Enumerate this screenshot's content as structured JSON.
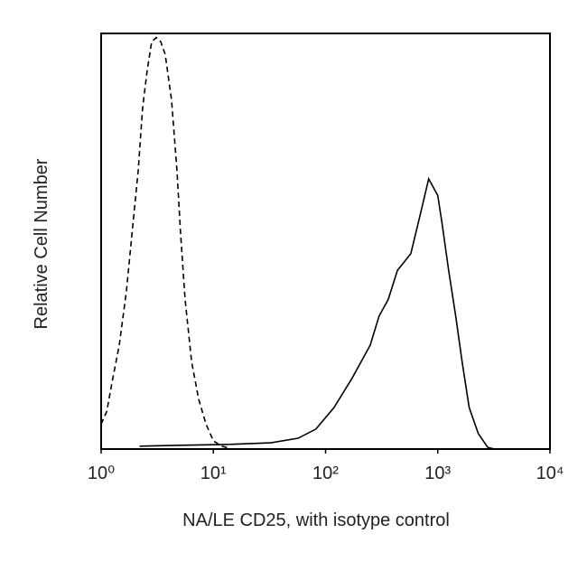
{
  "chart_data": {
    "type": "line",
    "xlabel": "NA/LE CD25, with isotype control",
    "ylabel": "Relative Cell Number",
    "xscale": "log",
    "xlim": [
      1,
      10000
    ],
    "xticks": [
      {
        "value": 1,
        "label": "10⁰"
      },
      {
        "value": 10,
        "label": "10¹"
      },
      {
        "value": 100,
        "label": "10²"
      },
      {
        "value": 1000,
        "label": "10³"
      },
      {
        "value": 10000,
        "label": "10⁴"
      }
    ],
    "ylim": [
      0,
      100
    ],
    "series": [
      {
        "color": "#000000",
        "dash": true,
        "x": [
          1,
          1.12,
          1.27,
          1.45,
          1.68,
          1.95,
          2.14,
          2.34,
          2.57,
          2.82,
          3.1,
          3.4,
          3.72,
          4.24,
          4.74,
          5.1,
          5.6,
          6.4,
          7.4,
          8.6,
          10,
          11.8,
          14
        ],
        "values": [
          6,
          9,
          17,
          25,
          38,
          56,
          67,
          82,
          91,
          98,
          99,
          98,
          95,
          84,
          67,
          52,
          36,
          21,
          12,
          6,
          2,
          0.7,
          0.2
        ]
      },
      {
        "color": "#000000",
        "dash": false,
        "x": [
          2.2,
          5.1,
          12.9,
          32.6,
          56.9,
          82,
          119,
          172,
          250,
          300,
          362,
          437,
          575,
          692,
          830,
          912,
          1000,
          1096,
          1250,
          1445,
          1648,
          1905,
          2300,
          2790,
          3200
        ],
        "values": [
          0.7,
          0.9,
          1.1,
          1.5,
          2.6,
          4.8,
          10,
          17,
          25,
          32,
          36,
          43,
          47,
          56,
          65,
          63,
          61,
          54,
          43,
          32,
          21,
          10,
          3.7,
          0.4,
          0
        ]
      }
    ]
  }
}
